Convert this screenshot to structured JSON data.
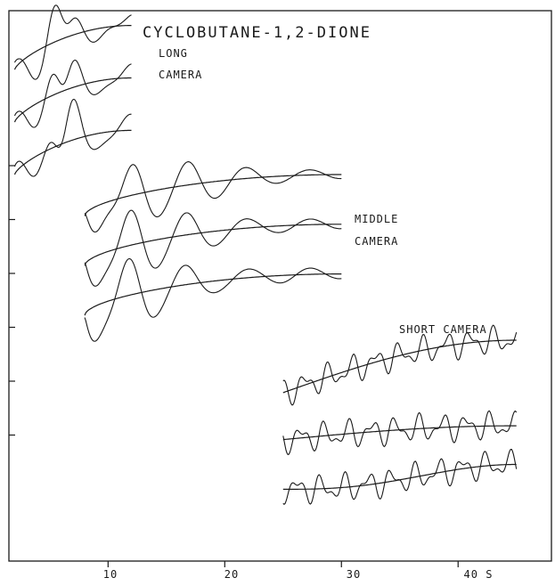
{
  "title": "CYCLOBUTANE-1,2-DIONE",
  "annotations": {
    "long_line1": "LONG",
    "long_line2": "CAMERA",
    "middle_line1": "MIDDLE",
    "middle_line2": "CAMERA",
    "short": "SHORT CAMERA"
  },
  "chart_data": {
    "type": "line",
    "title": "CYCLOBUTANE-1,2-DIONE",
    "xlabel": "",
    "ylabel": "",
    "x_unit_label": "S",
    "xlim": [
      1.5,
      48
    ],
    "x_ticks": [
      10,
      20,
      30,
      40
    ],
    "x_tick_labels": [
      "10",
      "20",
      "30",
      "40 S"
    ],
    "y_tick_count": 6,
    "grid": false,
    "legend": "none",
    "groups": [
      {
        "name": "LONG CAMERA",
        "s_range": [
          2,
          12
        ],
        "curves": [
          {
            "offset": 4.9,
            "bg_start": 0.0,
            "bg_end": 0.8,
            "bg_shape": 0.7
          },
          {
            "offset": 3.95,
            "bg_start": 0.0,
            "bg_end": 0.8,
            "bg_shape": 0.7
          },
          {
            "offset": 3.0,
            "bg_start": 0.0,
            "bg_end": 0.8,
            "bg_shape": 0.7
          }
        ]
      },
      {
        "name": "MIDDLE CAMERA",
        "s_range": [
          8,
          30
        ],
        "curves": [
          {
            "offset": 2.25,
            "bg_start": 0.0,
            "bg_end": 0.75,
            "bg_shape": 0.55
          },
          {
            "offset": 1.35,
            "bg_start": 0.0,
            "bg_end": 0.75,
            "bg_shape": 0.55
          },
          {
            "offset": 0.45,
            "bg_start": 0.0,
            "bg_end": 0.75,
            "bg_shape": 0.55
          }
        ]
      },
      {
        "name": "SHORT CAMERA",
        "s_range": [
          25,
          45
        ],
        "curves": [
          {
            "offset": -0.95,
            "bg_start": 0.0,
            "bg_end": 0.95,
            "bg_shape": 1.0
          },
          {
            "offset": -1.8,
            "bg_start": 0.0,
            "bg_end": 0.25,
            "bg_shape": 1.0
          },
          {
            "offset": -2.7,
            "bg_start": 0.0,
            "bg_end": 0.45,
            "bg_shape": 2.8
          }
        ]
      }
    ]
  }
}
